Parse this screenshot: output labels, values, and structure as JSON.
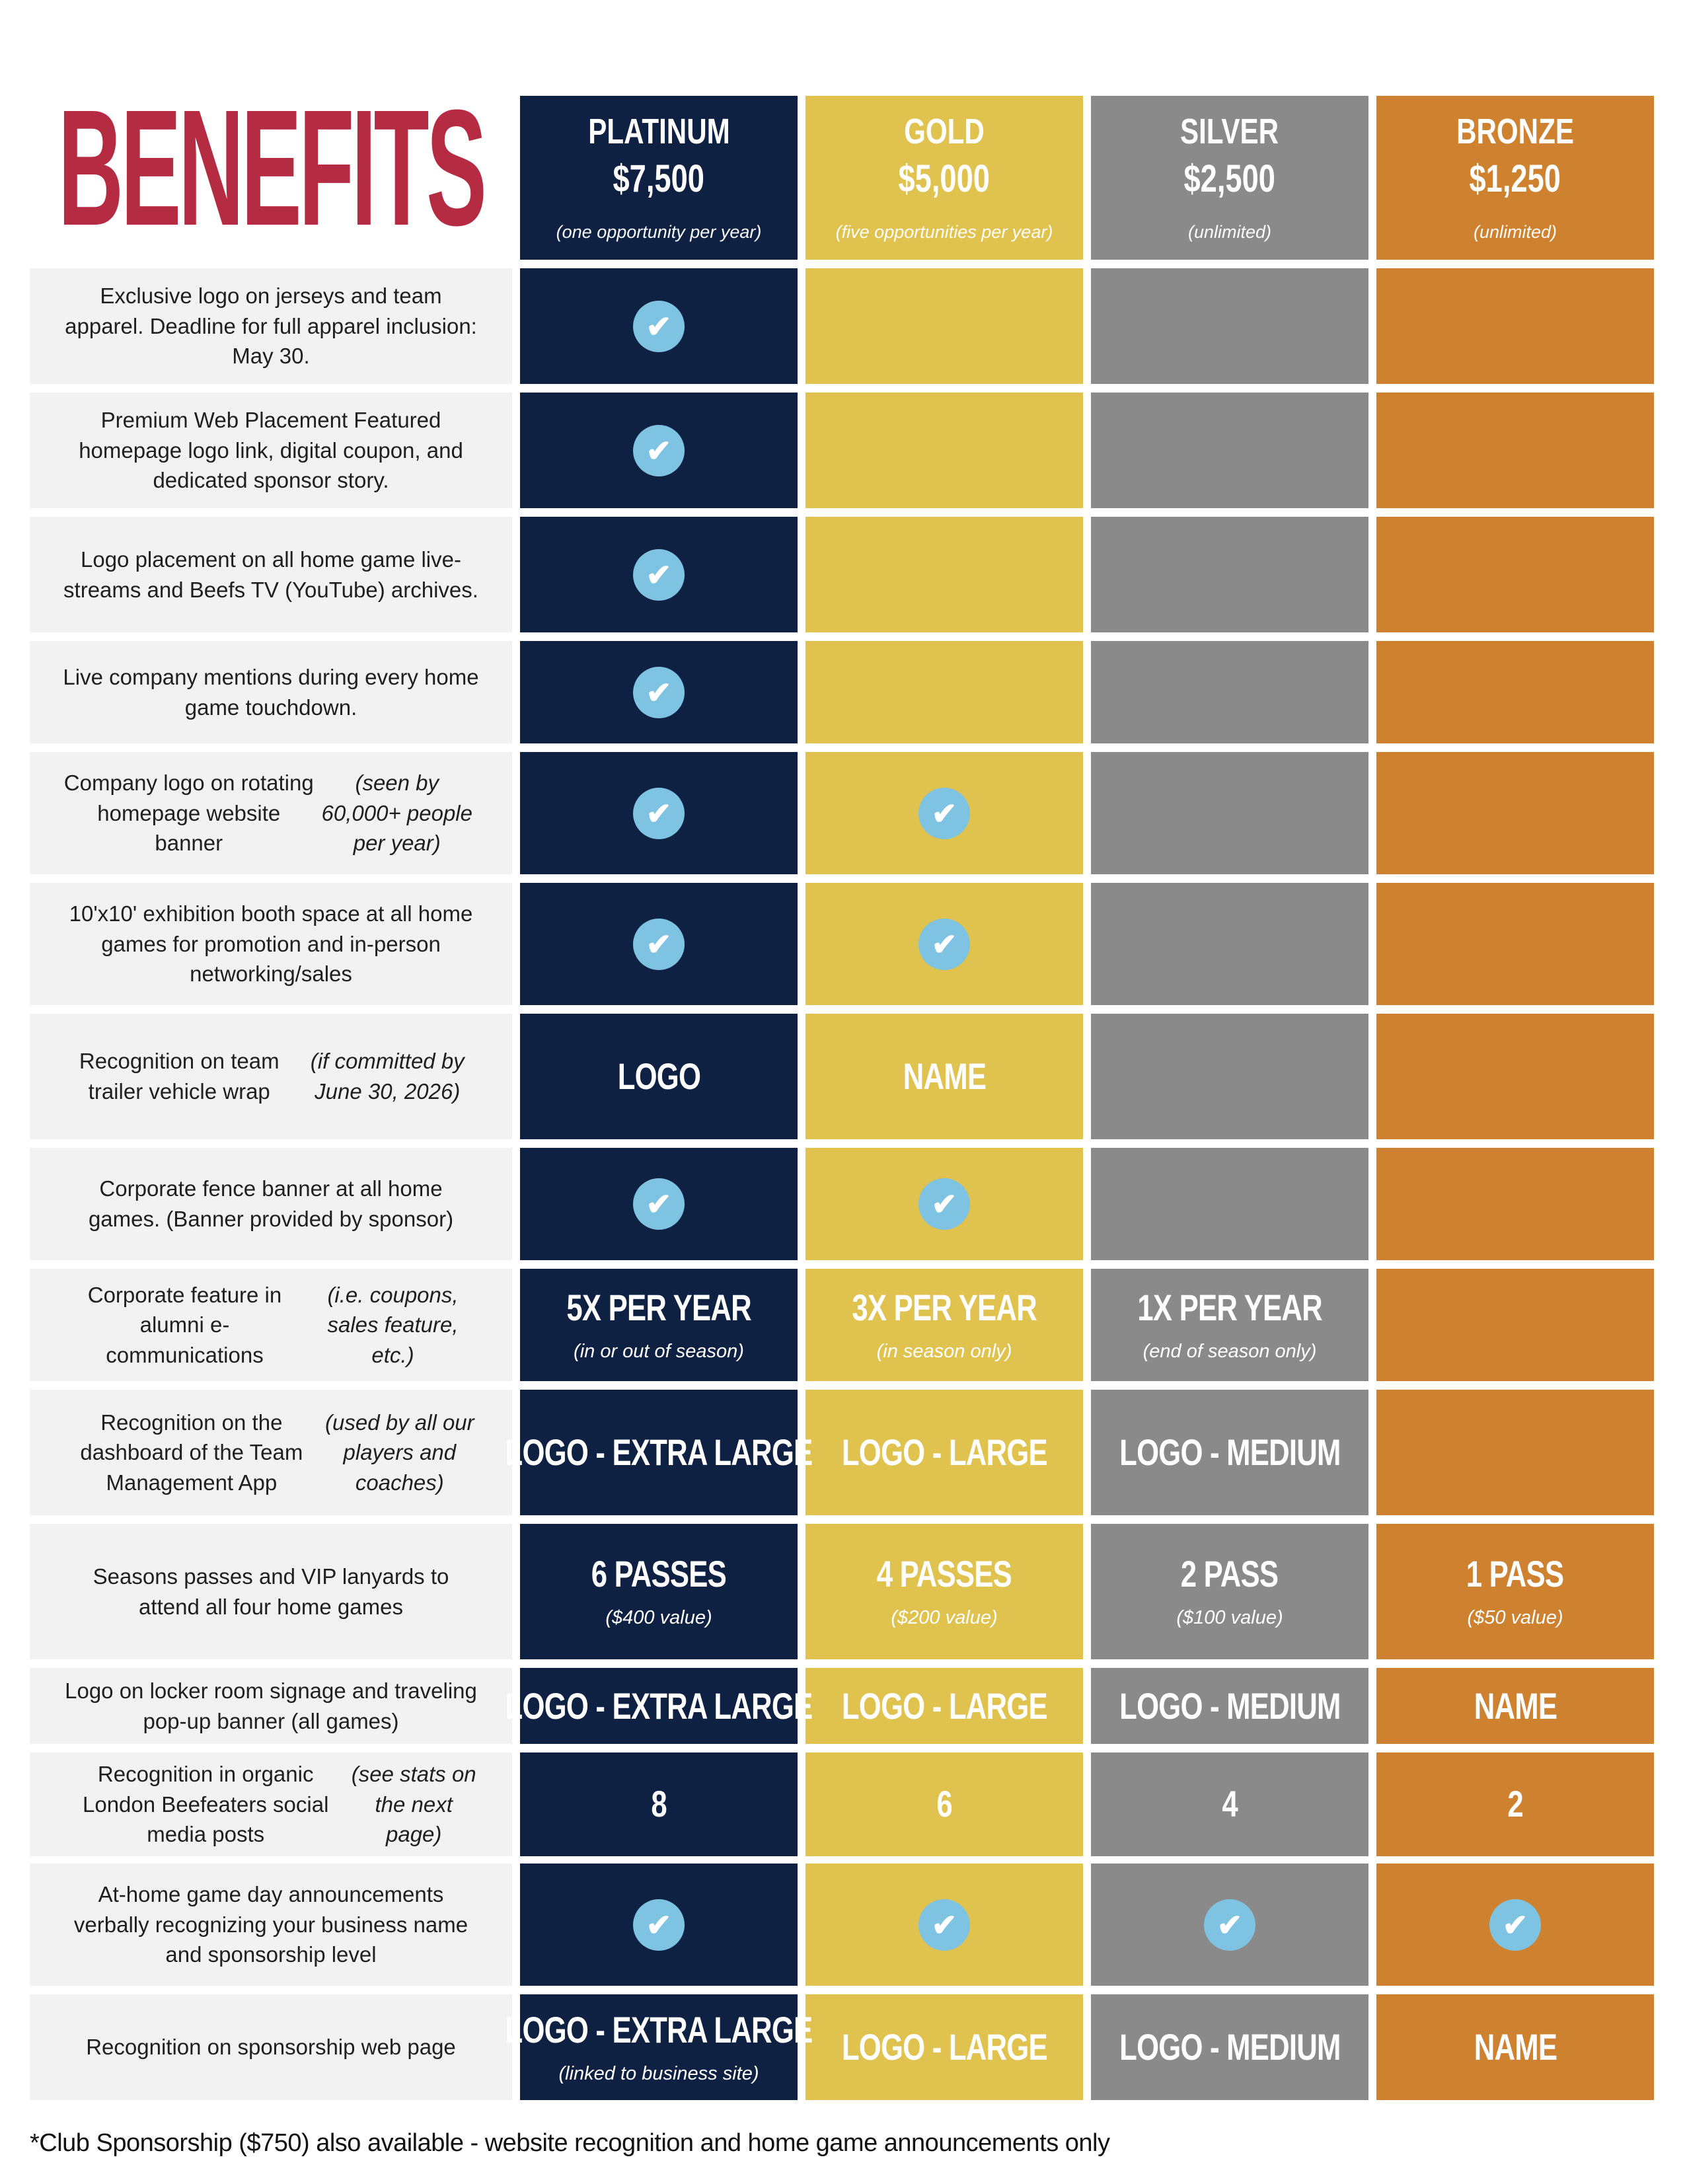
{
  "title": "BENEFITS",
  "colors": {
    "page_background": "#FFFFFF",
    "title": "#B52B42",
    "label_background": "#F2F2F2",
    "label_text": "#1F1F1F",
    "cell_text": "#FFFFFF",
    "check_circle": "#7EC3E2",
    "check_glyph": "#FFFFFF",
    "footnote_text": "#111111"
  },
  "tiers": [
    {
      "id": "platinum",
      "name": "PLATINUM",
      "price": "$7,500",
      "availability": "(one opportunity per year)",
      "color": "#0E2143"
    },
    {
      "id": "gold",
      "name": "GOLD",
      "price": "$5,000",
      "availability": "(five opportunities per year)",
      "color": "#E0C24F"
    },
    {
      "id": "silver",
      "name": "SILVER",
      "price": "$2,500",
      "availability": "(unlimited)",
      "color": "#8A8A8A"
    },
    {
      "id": "bronze",
      "name": "BRONZE",
      "price": "$1,250",
      "availability": "(unlimited)",
      "color": "#CE8230"
    }
  ],
  "rows": [
    {
      "label": "Exclusive logo on jerseys and team apparel. Deadline for full apparel inclusion: May 30.",
      "note": "",
      "cells": [
        {
          "type": "check"
        },
        {
          "type": "empty"
        },
        {
          "type": "empty"
        },
        {
          "type": "empty"
        }
      ]
    },
    {
      "label": "Premium Web Placement Featured homepage logo link, digital coupon, and dedicated sponsor story.",
      "note": "",
      "cells": [
        {
          "type": "check"
        },
        {
          "type": "empty"
        },
        {
          "type": "empty"
        },
        {
          "type": "empty"
        }
      ]
    },
    {
      "label": "Logo placement on all home game live-streams and Beefs TV (YouTube) archives.",
      "note": "",
      "cells": [
        {
          "type": "check"
        },
        {
          "type": "empty"
        },
        {
          "type": "empty"
        },
        {
          "type": "empty"
        }
      ]
    },
    {
      "label": "Live company mentions during every home game touchdown.",
      "note": "",
      "cells": [
        {
          "type": "check"
        },
        {
          "type": "empty"
        },
        {
          "type": "empty"
        },
        {
          "type": "empty"
        }
      ]
    },
    {
      "label": "Company logo on rotating homepage website banner",
      "note": "(seen by 60,000+ people per year)",
      "cells": [
        {
          "type": "check"
        },
        {
          "type": "check"
        },
        {
          "type": "empty"
        },
        {
          "type": "empty"
        }
      ]
    },
    {
      "label": "10'x10' exhibition booth space at all home games for promotion and in-person networking/sales",
      "note": "",
      "cells": [
        {
          "type": "check"
        },
        {
          "type": "check"
        },
        {
          "type": "empty"
        },
        {
          "type": "empty"
        }
      ]
    },
    {
      "label": "Recognition on team trailer vehicle wrap",
      "note": "(if committed by June 30, 2026)",
      "cells": [
        {
          "type": "text",
          "main": "LOGO"
        },
        {
          "type": "text",
          "main": "NAME"
        },
        {
          "type": "empty"
        },
        {
          "type": "empty"
        }
      ]
    },
    {
      "label": "Corporate fence banner at all home games. (Banner provided by sponsor)",
      "note": "",
      "cells": [
        {
          "type": "check"
        },
        {
          "type": "check"
        },
        {
          "type": "empty"
        },
        {
          "type": "empty"
        }
      ]
    },
    {
      "label": "Corporate feature in alumni e-communications",
      "note": "(i.e. coupons, sales feature, etc.)",
      "cells": [
        {
          "type": "text",
          "main": "5X PER YEAR",
          "sub": "(in or out of season)"
        },
        {
          "type": "text",
          "main": "3X PER YEAR",
          "sub": "(in season only)"
        },
        {
          "type": "text",
          "main": "1X PER YEAR",
          "sub": "(end of season only)"
        },
        {
          "type": "empty"
        }
      ]
    },
    {
      "label": "Recognition on the dashboard of the Team Management App",
      "note": "(used by all our players and coaches)",
      "cells": [
        {
          "type": "text",
          "main": "LOGO - EXTRA LARGE"
        },
        {
          "type": "text",
          "main": "LOGO - LARGE"
        },
        {
          "type": "text",
          "main": "LOGO - MEDIUM"
        },
        {
          "type": "empty"
        }
      ]
    },
    {
      "label": "Seasons passes and VIP lanyards to attend all four home games",
      "note": "",
      "cells": [
        {
          "type": "text",
          "main": "6 PASSES",
          "sub": "($400 value)"
        },
        {
          "type": "text",
          "main": "4 PASSES",
          "sub": "($200 value)"
        },
        {
          "type": "text",
          "main": "2 PASS",
          "sub": "($100 value)"
        },
        {
          "type": "text",
          "main": "1 PASS",
          "sub": "($50 value)"
        }
      ]
    },
    {
      "label": "Logo on locker room signage and traveling pop-up banner (all games)",
      "note": "",
      "cells": [
        {
          "type": "text",
          "main": "LOGO - EXTRA LARGE"
        },
        {
          "type": "text",
          "main": "LOGO - LARGE"
        },
        {
          "type": "text",
          "main": "LOGO - MEDIUM"
        },
        {
          "type": "text",
          "main": "NAME"
        }
      ]
    },
    {
      "label": "Recognition in organic London Beefeaters social media posts",
      "note": "(see stats on the next page)",
      "cells": [
        {
          "type": "text",
          "main": "8"
        },
        {
          "type": "text",
          "main": "6"
        },
        {
          "type": "text",
          "main": "4"
        },
        {
          "type": "text",
          "main": "2"
        }
      ]
    },
    {
      "label": "At-home game day announcements verbally recognizing your business name and sponsorship level",
      "note": "",
      "cells": [
        {
          "type": "check"
        },
        {
          "type": "check"
        },
        {
          "type": "check"
        },
        {
          "type": "check"
        }
      ]
    },
    {
      "label": "Recognition on sponsorship web page",
      "note": "",
      "cells": [
        {
          "type": "text",
          "main": "LOGO - EXTRA LARGE",
          "sub": "(linked to business site)"
        },
        {
          "type": "text",
          "main": "LOGO - LARGE"
        },
        {
          "type": "text",
          "main": "LOGO - MEDIUM"
        },
        {
          "type": "text",
          "main": "NAME"
        }
      ]
    }
  ],
  "footnote": "*Club Sponsorship ($750) also available - website recognition and home game announcements only"
}
